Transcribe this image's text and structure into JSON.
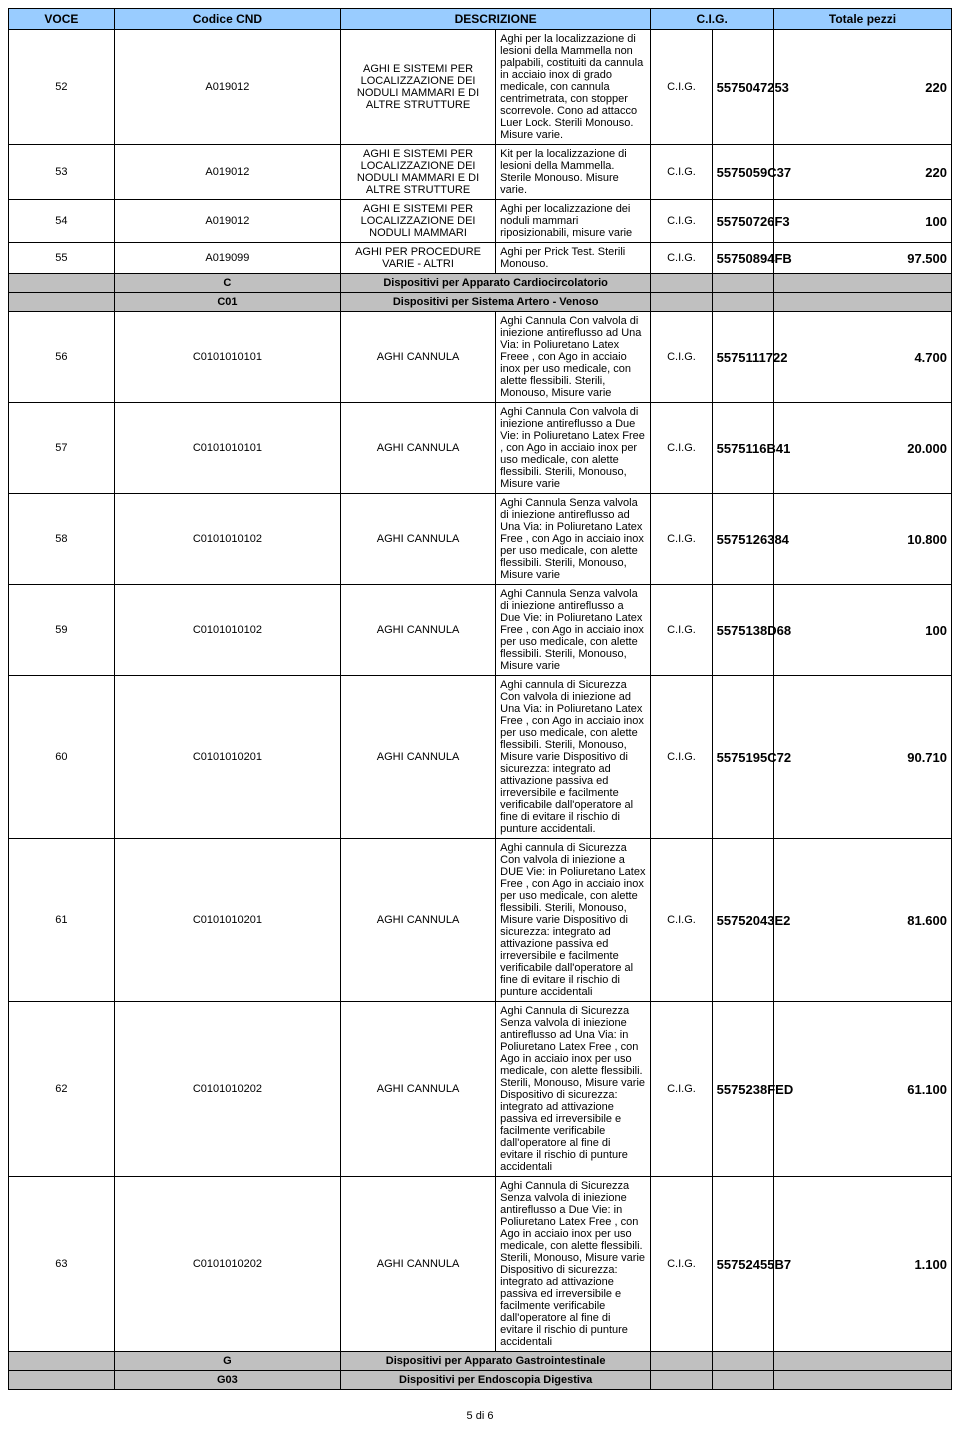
{
  "header": {
    "voce": "VOCE",
    "cnd": "Codice CND",
    "desc": "DESCRIZIONE",
    "cig": "C.I.G.",
    "tot": "Totale pezzi"
  },
  "rows": [
    {
      "voce": "52",
      "cnd": "A019012",
      "d1": "AGHI E SISTEMI PER LOCALIZZAZIONE DEI NODULI MAMMARI E DI ALTRE STRUTTURE",
      "d2": "Aghi per la localizzazione di lesioni della Mammella non palpabili, costituiti da cannula in acciaio inox di grado medicale, con cannula centrimetrata, con stopper scorrevole. Cono ad attacco Luer Lock. Sterili Monouso. Misure varie.",
      "cig": "C.I.G.",
      "cign": "5575047253",
      "tot": "220"
    },
    {
      "voce": "53",
      "cnd": "A019012",
      "d1": "AGHI E SISTEMI PER LOCALIZZAZIONE DEI NODULI MAMMARI E DI ALTRE STRUTTURE",
      "d2": "Kit per la localizzazione di lesioni della Mammella. Sterile Monouso. Misure varie.",
      "cig": "C.I.G.",
      "cign": "5575059C37",
      "tot": "220"
    },
    {
      "voce": "54",
      "cnd": "A019012",
      "d1": "AGHI E SISTEMI PER LOCALIZZAZIONE DEI NODULI MAMMARI",
      "d2": "Aghi per localizzazione dei noduli mammari riposizionabili, misure varie",
      "cig": "C.I.G.",
      "cign": "55750726F3",
      "tot": "100"
    },
    {
      "voce": "55",
      "cnd": "A019099",
      "d1": "AGHI PER PROCEDURE VARIE - ALTRI",
      "d2": "Aghi per Prick Test. Sterili Monouso.",
      "cig": "C.I.G.",
      "cign": "55750894FB",
      "tot": "97.500"
    }
  ],
  "sec1": {
    "code": "C",
    "label": "Dispositivi per Apparato Cardiocircolatorio"
  },
  "sec2": {
    "code": "C01",
    "label": "Dispositivi per Sistema Artero - Venoso"
  },
  "rows2": [
    {
      "voce": "56",
      "cnd": "C0101010101",
      "d1": "AGHI CANNULA",
      "d2": "Aghi Cannula Con valvola di iniezione antireflusso ad Una Via: in Poliuretano Latex Freee , con Ago in acciaio inox per uso medicale, con alette flessibili. Sterili, Monouso, Misure varie",
      "cig": "C.I.G.",
      "cign": "5575111722",
      "tot": "4.700"
    },
    {
      "voce": "57",
      "cnd": "C0101010101",
      "d1": "AGHI CANNULA",
      "d2": "Aghi Cannula Con valvola di iniezione antireflusso a Due Vie: in Poliuretano Latex Free , con Ago in acciaio inox per uso medicale, con alette flessibili. Sterili, Monouso, Misure varie",
      "cig": "C.I.G.",
      "cign": "5575116B41",
      "tot": "20.000"
    },
    {
      "voce": "58",
      "cnd": "C0101010102",
      "d1": "AGHI CANNULA",
      "d2": "Aghi Cannula Senza valvola di iniezione antireflusso ad Una Via: in Poliuretano Latex Free , con Ago in acciaio inox per uso medicale, con alette flessibili. Sterili, Monouso, Misure varie",
      "cig": "C.I.G.",
      "cign": "5575126384",
      "tot": "10.800"
    },
    {
      "voce": "59",
      "cnd": "C0101010102",
      "d1": "AGHI CANNULA",
      "d2": "Aghi Cannula Senza valvola di iniezione antireflusso a Due Vie: in Poliuretano Latex Free , con Ago in acciaio inox per uso medicale, con alette flessibili. Sterili, Monouso, Misure varie",
      "cig": "C.I.G.",
      "cign": "5575138D68",
      "tot": "100"
    },
    {
      "voce": "60",
      "cnd": "C0101010201",
      "d1": "AGHI CANNULA",
      "d2": "Aghi cannula di Sicurezza Con valvola di iniezione ad Una Via: in Poliuretano Latex Free , con Ago in acciaio inox per uso medicale, con alette flessibili. Sterili, Monouso, Misure varie Dispositivo di sicurezza: integrato ad attivazione passiva ed irreversibile e facilmente verificabile dall'operatore al fine di evitare il rischio di punture accidentali.",
      "cig": "C.I.G.",
      "cign": "5575195C72",
      "tot": "90.710"
    },
    {
      "voce": "61",
      "cnd": "C0101010201",
      "d1": "AGHI CANNULA",
      "d2": "Aghi cannula di Sicurezza Con valvola di iniezione a DUE Vie: in Poliuretano Latex Free , con Ago in acciaio inox per uso medicale, con alette flessibili. Sterili, Monouso, Misure varie Dispositivo di sicurezza: integrato ad attivazione passiva ed irreversibile e facilmente verificabile dall'operatore al fine di evitare il rischio di punture accidentali",
      "cig": "C.I.G.",
      "cign": "55752043E2",
      "tot": "81.600"
    },
    {
      "voce": "62",
      "cnd": "C0101010202",
      "d1": "AGHI CANNULA",
      "d2": "Aghi Cannula di Sicurezza Senza valvola di iniezione antireflusso ad Una Via: in Poliuretano Latex Free , con Ago in acciaio inox per uso medicale, con alette flessibili. Sterili, Monouso, Misure varie Dispositivo di sicurezza: integrato ad attivazione passiva ed irreversibile e facilmente verificabile dall'operatore al fine di evitare il rischio di punture accidentali",
      "cig": "C.I.G.",
      "cign": "5575238FED",
      "tot": "61.100"
    },
    {
      "voce": "63",
      "cnd": "C0101010202",
      "d1": "AGHI CANNULA",
      "d2": "Aghi Cannula di Sicurezza Senza valvola di iniezione antireflusso a Due Vie: in Poliuretano Latex Free , con Ago in acciaio inox per uso medicale, con alette flessibili. Sterili, Monouso, Misure varie Dispositivo di sicurezza: integrato ad attivazione passiva ed irreversibile e facilmente verificabile dall'operatore al fine di evitare il rischio di punture accidentali",
      "cig": "C.I.G.",
      "cign": "55752455B7",
      "tot": "1.100"
    }
  ],
  "sec3": {
    "code": "G",
    "label": "Dispositivi per Apparato Gastrointestinale"
  },
  "sec4": {
    "code": "G03",
    "label": "Dispositivi per Endoscopia Digestiva"
  },
  "footer": "5 di 6"
}
